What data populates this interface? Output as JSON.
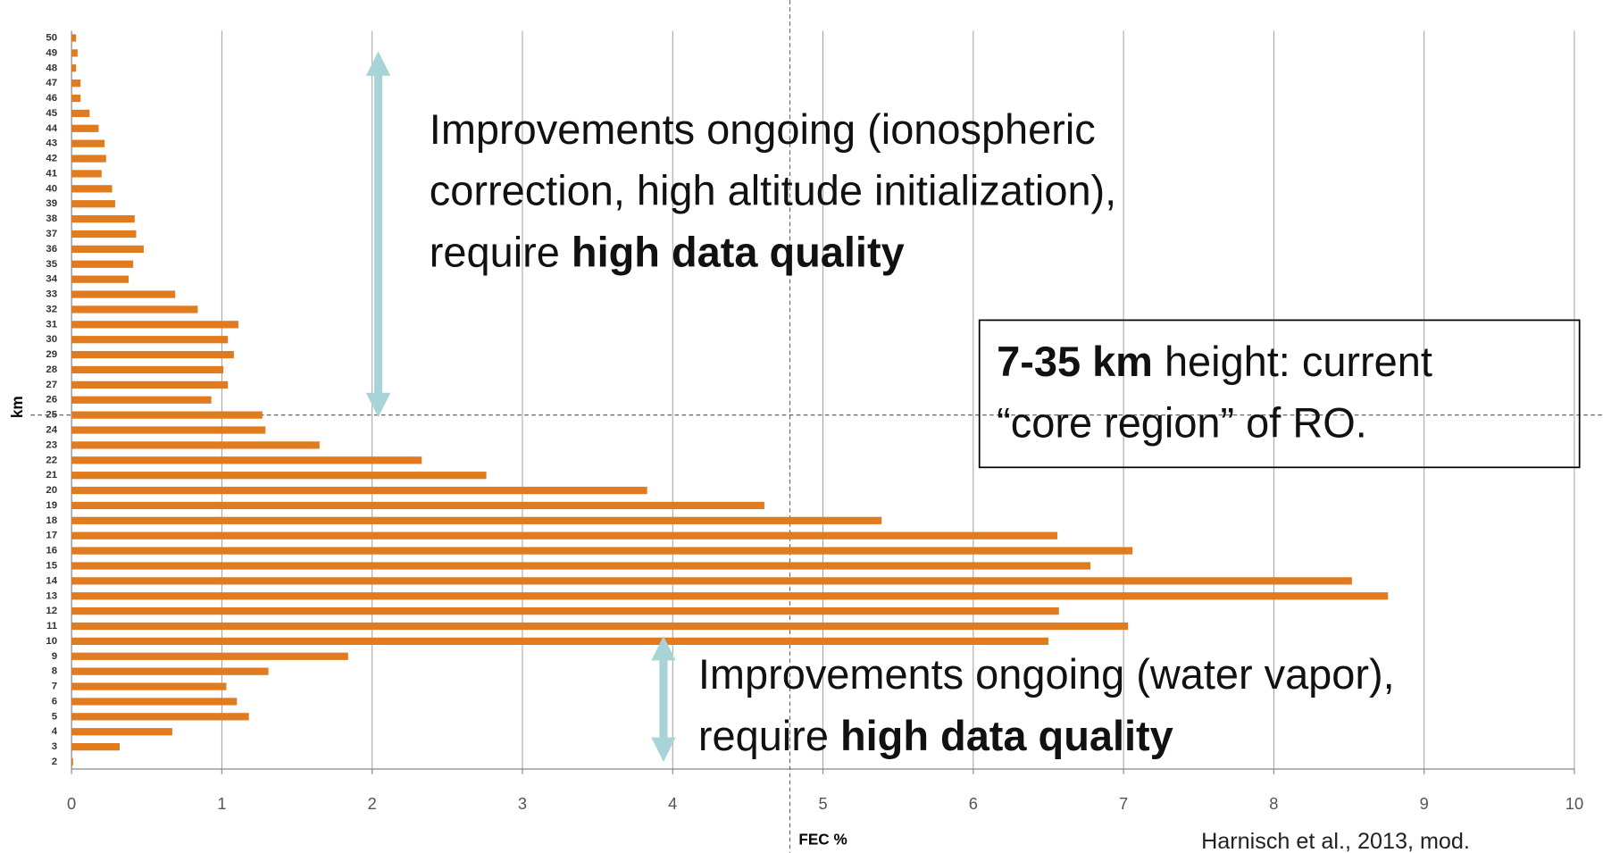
{
  "chart_data": {
    "type": "bar",
    "orientation": "horizontal",
    "categories": [
      "2",
      "3",
      "4",
      "5",
      "6",
      "7",
      "8",
      "9",
      "10",
      "11",
      "12",
      "13",
      "14",
      "15",
      "16",
      "17",
      "18",
      "19",
      "20",
      "21",
      "22",
      "23",
      "24",
      "25",
      "26",
      "27",
      "28",
      "29",
      "30",
      "31",
      "32",
      "33",
      "34",
      "35",
      "36",
      "37",
      "38",
      "39",
      "40",
      "41",
      "42",
      "43",
      "44",
      "45",
      "46",
      "47",
      "48",
      "49",
      "50"
    ],
    "values": [
      0.01,
      0.32,
      0.67,
      1.18,
      1.1,
      1.03,
      1.31,
      1.84,
      6.5,
      7.03,
      6.57,
      8.76,
      8.52,
      6.78,
      7.06,
      6.56,
      5.39,
      4.61,
      3.83,
      2.76,
      2.33,
      1.65,
      1.29,
      1.27,
      0.93,
      1.04,
      1.01,
      1.08,
      1.04,
      1.11,
      0.84,
      0.69,
      0.38,
      0.41,
      0.48,
      0.43,
      0.42,
      0.29,
      0.27,
      0.2,
      0.23,
      0.22,
      0.18,
      0.12,
      0.06,
      0.06,
      0.03,
      0.04,
      0.03
    ],
    "color": "#e07b20",
    "xlim": [
      0,
      10
    ],
    "xticks": [
      0,
      1,
      2,
      3,
      4,
      5,
      6,
      7,
      8,
      9,
      10
    ],
    "grid": true,
    "x_label": "FEC %",
    "y_label": "km",
    "reference_lines": {
      "x": 4.78,
      "y": 25
    },
    "annotations": [
      {
        "lines": [
          [
            {
              "text": "Improvements ongoing (ionospheric",
              "bold": false
            }
          ],
          [
            {
              "text": "correction, high altitude initialization),",
              "bold": false
            }
          ],
          [
            {
              "text": "require ",
              "bold": false
            },
            {
              "text": "high data quality",
              "bold": true
            }
          ]
        ]
      },
      {
        "lines": [
          [
            {
              "text": "7-35 km",
              "bold": true
            },
            {
              "text": " height: current",
              "bold": false
            }
          ],
          [
            {
              "text": "“core region” of RO.",
              "bold": false
            }
          ]
        ]
      },
      {
        "lines": [
          [
            {
              "text": "Improvements ongoing (water vapor),",
              "bold": false
            }
          ],
          [
            {
              "text": "require ",
              "bold": false
            },
            {
              "text": "high data quality",
              "bold": true
            }
          ]
        ]
      }
    ],
    "source": "Harnisch et al., 2013, mod."
  }
}
